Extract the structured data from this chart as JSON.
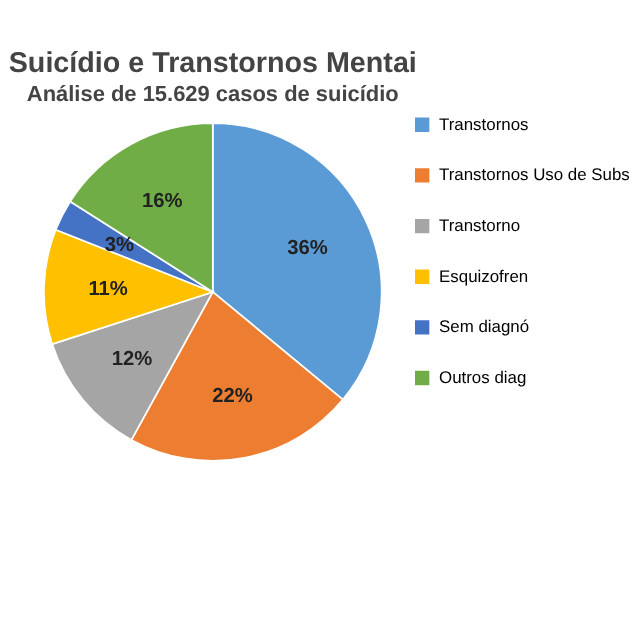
{
  "chart_data": {
    "type": "pie",
    "title": "Suicídio e Transtornos Mentai",
    "subtitle": "Análise de 15.629 casos de suicídio",
    "categories": [
      "Transtornos",
      "Transtornos Uso de Subs",
      "Transtorno",
      "Esquizofren",
      "Sem diagnó",
      "Outros diag"
    ],
    "values": [
      36,
      22,
      12,
      11,
      3,
      16
    ],
    "colors": [
      "#5b9bd5",
      "#ed7d31",
      "#a5a5a5",
      "#ffc000",
      "#4472c4",
      "#70ad47"
    ],
    "value_labels": [
      "36%",
      "22%",
      "12%",
      "11%",
      "3%",
      "16%"
    ],
    "legend": "right"
  }
}
